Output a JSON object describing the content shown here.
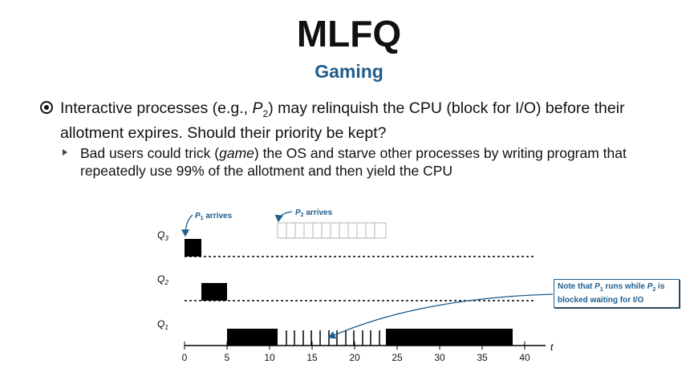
{
  "slide": {
    "title": "MLFQ",
    "subtitle": "Gaming",
    "bullet1": {
      "pre": "Interactive processes (e.g., ",
      "p": "P",
      "sub": "2",
      "post": ") may relinquish the CPU (block for I/O) before their allotment expires. Should their priority be kept?"
    },
    "bullet2": {
      "pre": "Bad users could trick (",
      "em": "game",
      "post": ") the OS and starve other processes by writing program that repeatedly use 99% of the allotment and then yield the CPU"
    }
  },
  "diagram": {
    "queues": [
      {
        "label": "Q",
        "sub": "3"
      },
      {
        "label": "Q",
        "sub": "2"
      },
      {
        "label": "Q",
        "sub": "1"
      }
    ],
    "p1_arrives": {
      "p": "P",
      "sub": "1",
      "text": " arrives"
    },
    "p2_arrives": {
      "p": "P",
      "sub": "2",
      "text": " arrives"
    },
    "axis_ticks": [
      "0",
      "5",
      "10",
      "15",
      "20",
      "25",
      "30",
      "35",
      "40"
    ],
    "axis_label": "t",
    "note": {
      "line1_pre": "Note that ",
      "p1": "P",
      "p1_sub": "1",
      "line1_mid": " runs while ",
      "p2": "P",
      "p2_sub": "2",
      "line1_post": " is",
      "line2": "blocked waiting for I/O"
    },
    "colors": {
      "accent": "#1f5d8c",
      "bar": "#000000",
      "io_box": "#c8c8c8"
    }
  }
}
